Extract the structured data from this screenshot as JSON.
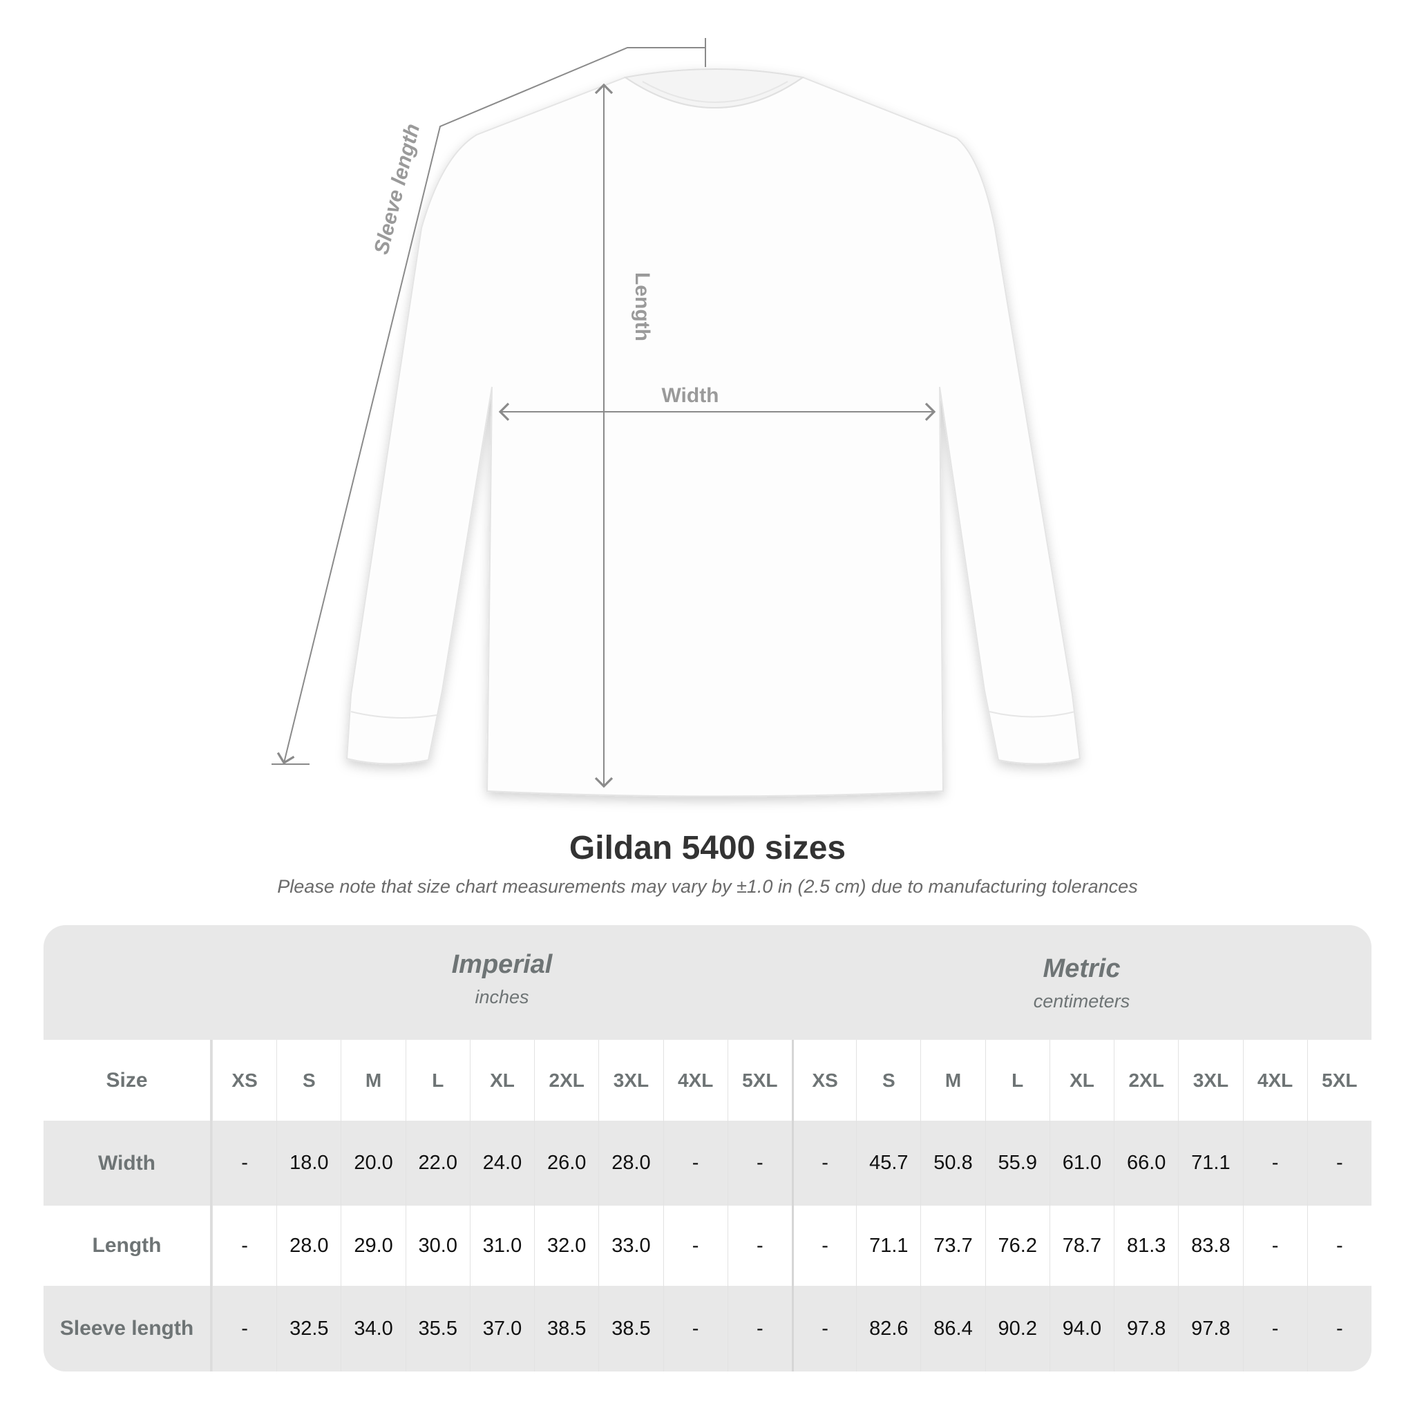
{
  "diagram": {
    "labels": {
      "sleeve": "Sleeve length",
      "length": "Length",
      "width": "Width"
    }
  },
  "title": "Gildan 5400 sizes",
  "subtitle": "Please note that size chart measurements may vary by ±1.0 in (2.5 cm) due to manufacturing tolerances",
  "table": {
    "imperial": {
      "name": "Imperial",
      "unit": "inches"
    },
    "metric": {
      "name": "Metric",
      "unit": "centimeters"
    },
    "size_label": "Size",
    "sizes": [
      "XS",
      "S",
      "M",
      "L",
      "XL",
      "2XL",
      "3XL",
      "4XL",
      "5XL"
    ],
    "rows": [
      {
        "label": "Width",
        "imperial": [
          "-",
          "18.0",
          "20.0",
          "22.0",
          "24.0",
          "26.0",
          "28.0",
          "-",
          "-"
        ],
        "metric": [
          "-",
          "45.7",
          "50.8",
          "55.9",
          "61.0",
          "66.0",
          "71.1",
          "-",
          "-"
        ]
      },
      {
        "label": "Length",
        "imperial": [
          "-",
          "28.0",
          "29.0",
          "30.0",
          "31.0",
          "32.0",
          "33.0",
          "-",
          "-"
        ],
        "metric": [
          "-",
          "71.1",
          "73.7",
          "76.2",
          "78.7",
          "81.3",
          "83.8",
          "-",
          "-"
        ]
      },
      {
        "label": "Sleeve length",
        "imperial": [
          "-",
          "32.5",
          "34.0",
          "35.5",
          "37.0",
          "38.5",
          "38.5",
          "-",
          "-"
        ],
        "metric": [
          "-",
          "82.6",
          "86.4",
          "90.2",
          "94.0",
          "97.8",
          "97.8",
          "-",
          "-"
        ]
      }
    ]
  }
}
